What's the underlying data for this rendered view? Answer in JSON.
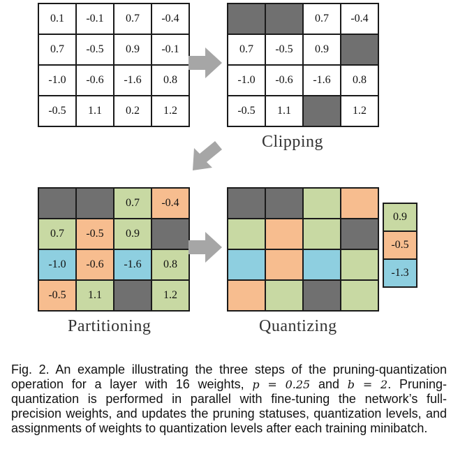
{
  "grids": {
    "original": [
      [
        "0.1",
        "-0.1",
        "0.7",
        "-0.4"
      ],
      [
        "0.7",
        "-0.5",
        "0.9",
        "-0.1"
      ],
      [
        "-1.0",
        "-0.6",
        "-1.6",
        "0.8"
      ],
      [
        "-0.5",
        "1.1",
        "0.2",
        "1.2"
      ]
    ],
    "clipped": [
      [
        "",
        "",
        "0.7",
        "-0.4"
      ],
      [
        "0.7",
        "-0.5",
        "0.9",
        ""
      ],
      [
        "-1.0",
        "-0.6",
        "-1.6",
        "0.8"
      ],
      [
        "-0.5",
        "1.1",
        "",
        "1.2"
      ]
    ],
    "partitioned": [
      [
        "",
        "",
        "0.7",
        "-0.4"
      ],
      [
        "0.7",
        "-0.5",
        "0.9",
        ""
      ],
      [
        "-1.0",
        "-0.6",
        "-1.6",
        "0.8"
      ],
      [
        "-0.5",
        "1.1",
        "",
        "1.2"
      ]
    ],
    "quantized_colors": [
      [
        "pruned",
        "pruned",
        "green",
        "orange"
      ],
      [
        "green",
        "orange",
        "green",
        "pruned"
      ],
      [
        "blue",
        "orange",
        "blue",
        "green"
      ],
      [
        "orange",
        "green",
        "pruned",
        "green"
      ]
    ],
    "partition_colors": [
      [
        "pruned",
        "pruned",
        "green",
        "orange"
      ],
      [
        "green",
        "orange",
        "green",
        "pruned"
      ],
      [
        "blue",
        "orange",
        "blue",
        "green"
      ],
      [
        "orange",
        "green",
        "pruned",
        "green"
      ]
    ],
    "clip_colors": [
      [
        "pruned",
        "pruned",
        "white",
        "white"
      ],
      [
        "white",
        "white",
        "white",
        "pruned"
      ],
      [
        "white",
        "white",
        "white",
        "white"
      ],
      [
        "white",
        "white",
        "pruned",
        "white"
      ]
    ]
  },
  "levels": [
    {
      "value": "0.9",
      "color": "green"
    },
    {
      "value": "-0.5",
      "color": "orange"
    },
    {
      "value": "-1.3",
      "color": "blue"
    }
  ],
  "colors": {
    "pruned": "#707070",
    "green": "#c8d9a3",
    "orange": "#f7bd8f",
    "blue": "#8ecfe0",
    "white": "#ffffff",
    "arrow": "#a6a6a6"
  },
  "labels": {
    "clipping": "Clipping",
    "partitioning": "Partitioning",
    "quantizing": "Quantizing"
  },
  "caption": {
    "part1": "Fig. 2. An example illustrating the three steps of the pruning-quantization operation for a layer with 16 weights, ",
    "p_expr": "p = 0.25",
    "and": " and ",
    "b_expr": "b = 2",
    "part2": ". Pruning-quantization is performed in parallel with fine-tuning the network’s full-precision weights, and updates the pruning statuses, quantization levels, and assignments of weights to quantization levels after each training minibatch."
  }
}
